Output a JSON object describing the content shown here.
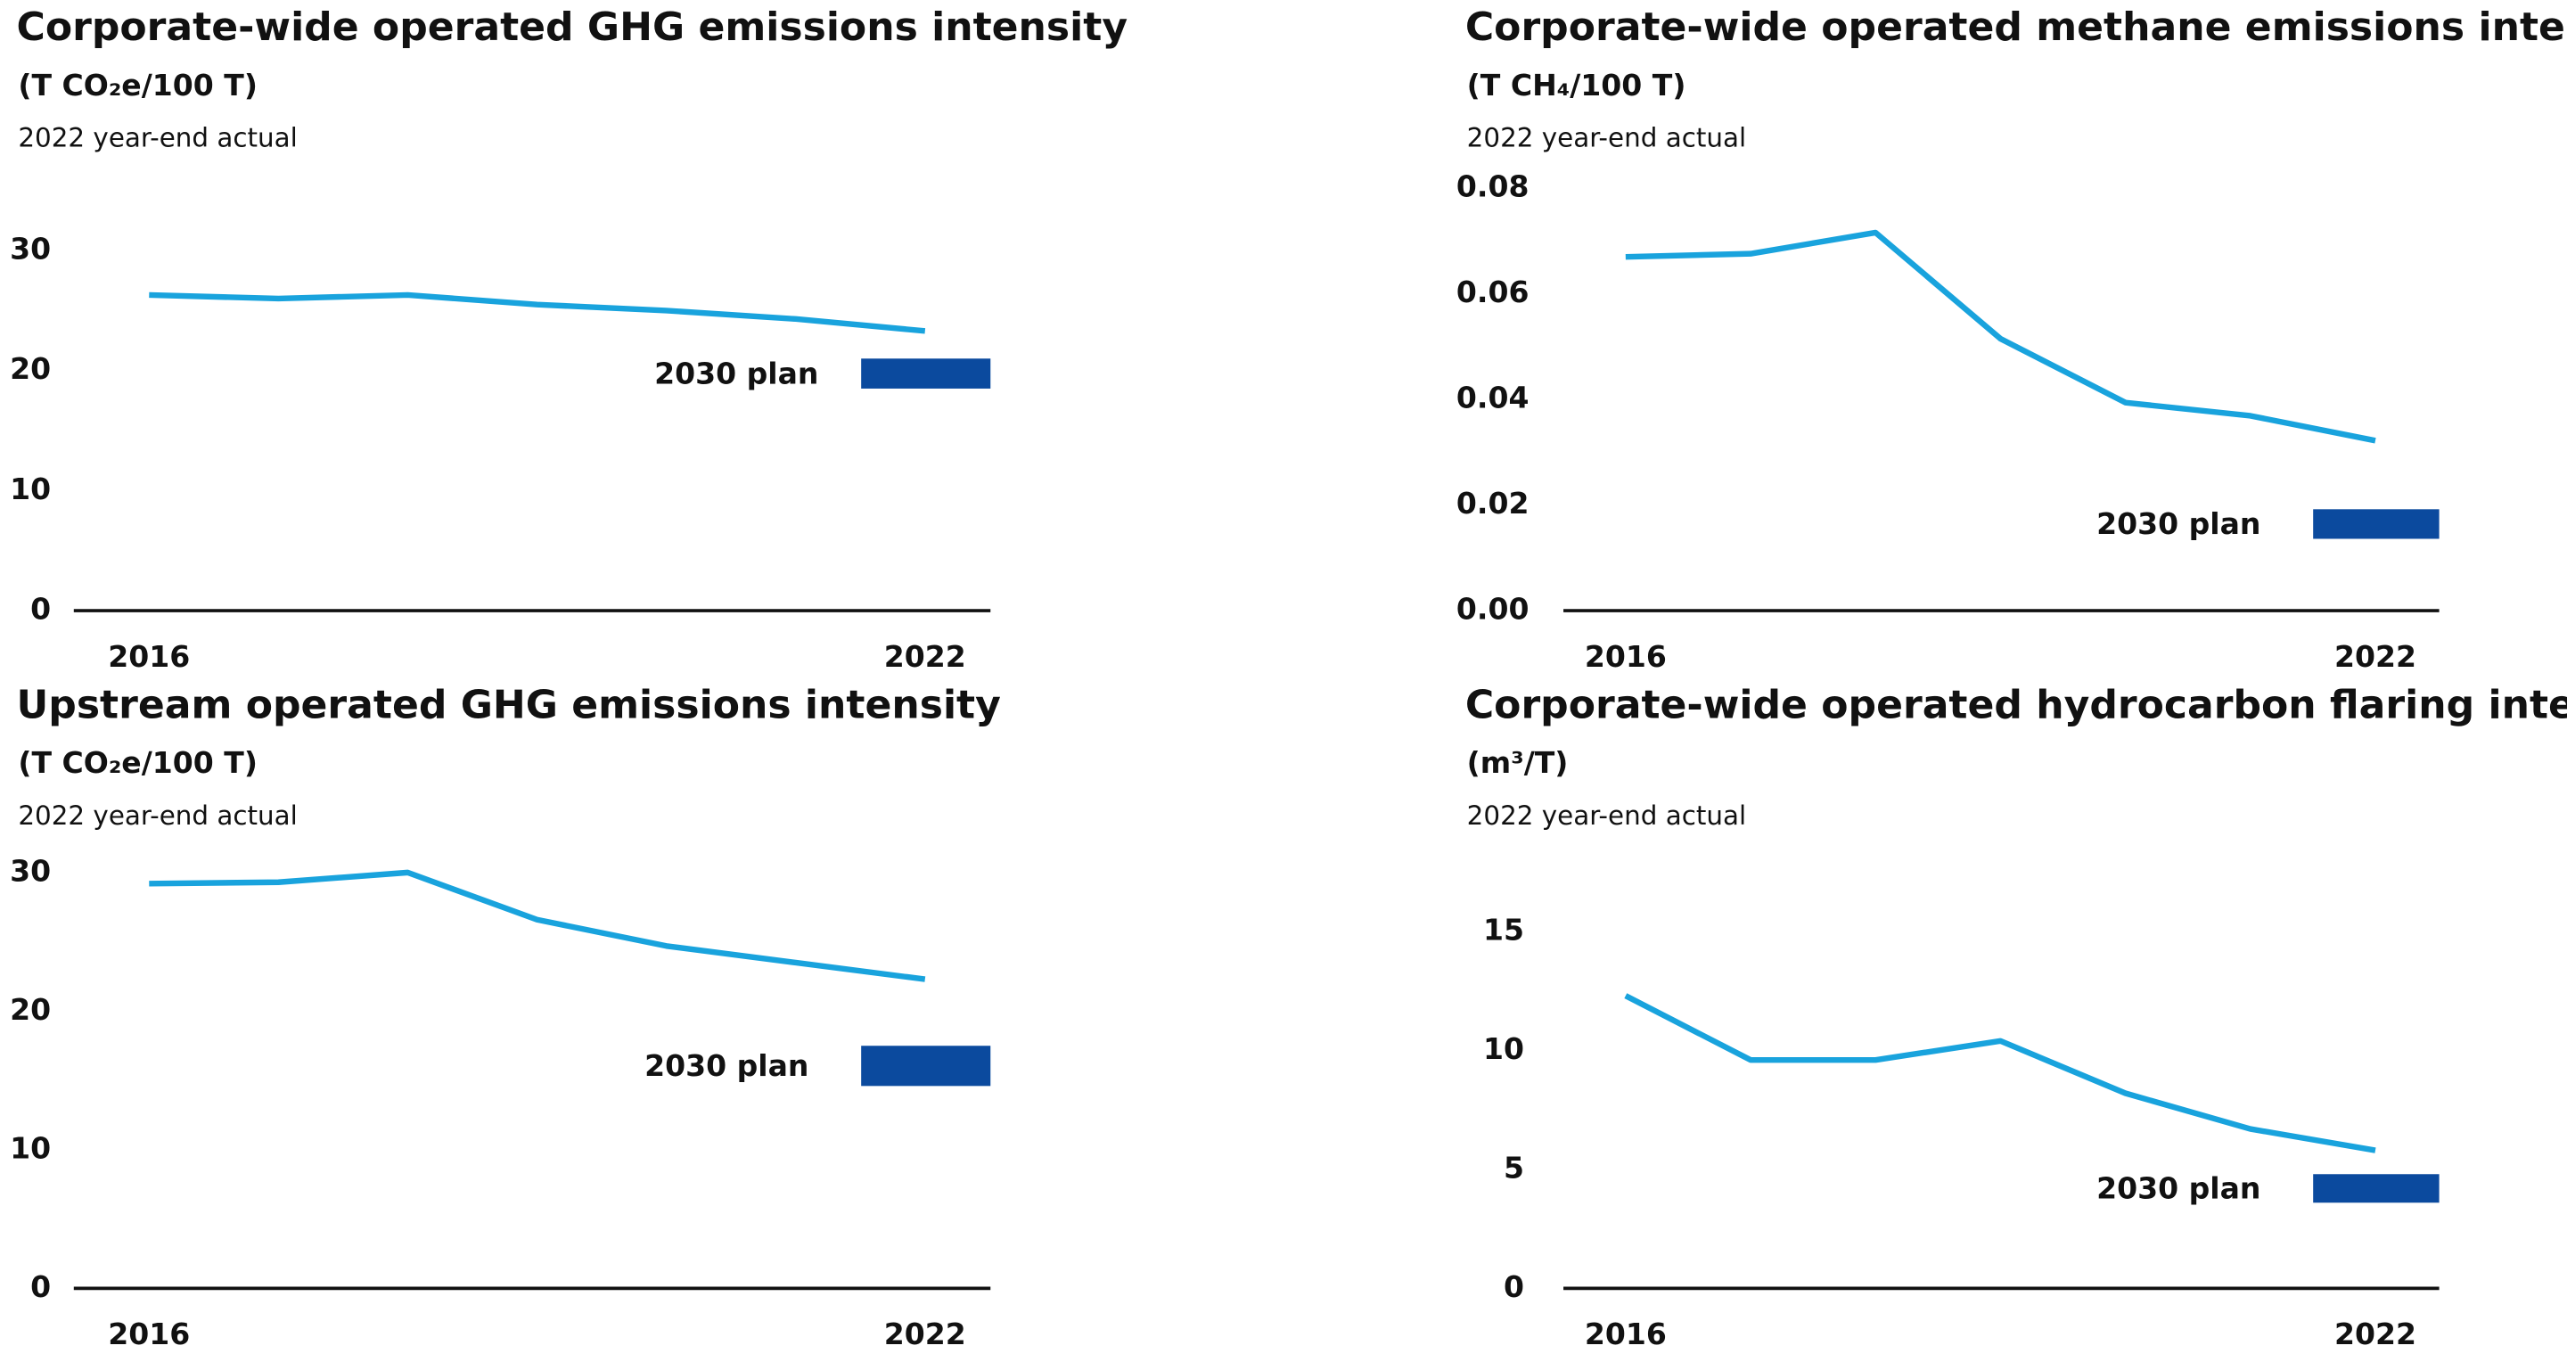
{
  "chart_data": [
    {
      "type": "line",
      "title": "Corporate-wide operated GHG emissions intensity",
      "units": "(T CO₂e/100 T)",
      "subtitle": "2022 year-end actual",
      "categories": [
        "2016",
        null,
        null,
        null,
        null,
        null,
        "2022"
      ],
      "series": [
        {
          "name": "actual",
          "color": "#19a3dd",
          "values": [
            26.3,
            26.0,
            26.3,
            25.5,
            25.0,
            24.3,
            23.3
          ]
        }
      ],
      "plan": {
        "label": "2030 plan",
        "range": [
          18.5,
          21
        ],
        "color": "#0b4a9e"
      },
      "ylim": [
        0,
        32
      ],
      "yticks": [
        0,
        10,
        20,
        30
      ]
    },
    {
      "type": "line",
      "title": "Corporate-wide operated methane emissions intensity",
      "units": "(T CH₄/100 T)",
      "subtitle": "2022 year-end actual",
      "categories": [
        "2016",
        null,
        null,
        null,
        null,
        null,
        "2022"
      ],
      "series": [
        {
          "name": "actual",
          "color": "#19a3dd",
          "values": [
            0.067,
            0.0676,
            0.0716,
            0.0515,
            0.0394,
            0.0369,
            0.0322
          ]
        }
      ],
      "plan": {
        "label": "2030 plan",
        "range": [
          0.0136,
          0.0192
        ],
        "color": "#0b4a9e"
      },
      "ylim": [
        0,
        0.08
      ],
      "yticks": [
        {
          "value": 0,
          "label": "0.00"
        },
        0.02,
        0.04,
        0.06,
        0.08
      ]
    },
    {
      "type": "line",
      "title": "Upstream operated GHG emissions intensity",
      "units": "(T CO₂e/100 T)",
      "subtitle": "2022 year-end actual",
      "categories": [
        "2016",
        null,
        null,
        null,
        null,
        null,
        "2022"
      ],
      "series": [
        {
          "name": "actual",
          "color": "#19a3dd",
          "values": [
            29.2,
            29.3,
            30.0,
            26.6,
            24.7,
            23.5,
            22.3
          ]
        }
      ],
      "plan": {
        "label": "2030 plan",
        "range": [
          14.6,
          17.5
        ],
        "color": "#0b4a9e"
      },
      "ylim": [
        0,
        30
      ],
      "yticks": [
        0,
        10,
        20,
        30
      ]
    },
    {
      "type": "line",
      "title": "Corporate-wide operated hydrocarbon flaring intensity",
      "units": "(m³/T)",
      "subtitle": "2022 year-end actual",
      "categories": [
        "2016",
        null,
        null,
        null,
        null,
        null,
        "2022"
      ],
      "series": [
        {
          "name": "actual",
          "color": "#19a3dd",
          "values": [
            12.3,
            9.6,
            9.6,
            10.4,
            8.2,
            6.7,
            5.8
          ]
        }
      ],
      "plan": {
        "label": "2030 plan",
        "range": [
          3.6,
          4.8
        ],
        "color": "#0b4a9e"
      },
      "ylim": [
        0,
        16
      ],
      "yticks": [
        0,
        5,
        10,
        15
      ]
    }
  ]
}
